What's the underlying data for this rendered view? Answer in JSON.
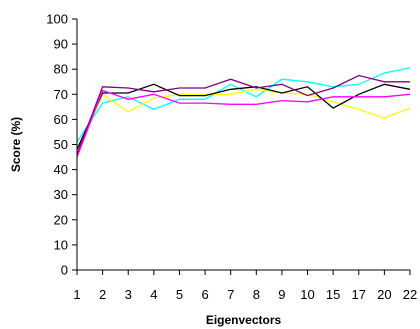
{
  "chart_data": {
    "type": "line",
    "title": "",
    "xlabel": "Eigenvectors",
    "ylabel": "Score (%)",
    "categories": [
      "1",
      "2",
      "3",
      "4",
      "5",
      "6",
      "7",
      "8",
      "9",
      "10",
      "15",
      "17",
      "20",
      "22"
    ],
    "ylim": [
      0,
      100
    ],
    "yticks": [
      0,
      10,
      20,
      30,
      40,
      50,
      60,
      70,
      80,
      90,
      100
    ],
    "grid": false,
    "legend": "none",
    "series": [
      {
        "color": "#00ffff",
        "values": [
          51,
          66.5,
          69,
          64,
          68,
          68,
          74,
          69,
          76,
          75,
          73,
          74,
          78.5,
          80.5
        ]
      },
      {
        "color": "#ffff00",
        "values": [
          47,
          70,
          63,
          68.5,
          70,
          70,
          70,
          72,
          70.5,
          70,
          67,
          64,
          60.5,
          64.5
        ]
      },
      {
        "color": "#000000",
        "values": [
          48,
          70.5,
          70.5,
          74,
          69.5,
          69.5,
          72,
          73,
          70.5,
          73,
          64.5,
          70,
          74,
          72
        ]
      },
      {
        "color": "#800080",
        "values": [
          46,
          73,
          72.5,
          71,
          72.5,
          72.5,
          76,
          72.5,
          74,
          69.5,
          72.5,
          77.5,
          75,
          75
        ]
      },
      {
        "color": "#ff00ff",
        "values": [
          45,
          71.5,
          68,
          70,
          66.5,
          66.5,
          66,
          66,
          67.5,
          67,
          69,
          69,
          69,
          70
        ]
      }
    ]
  }
}
